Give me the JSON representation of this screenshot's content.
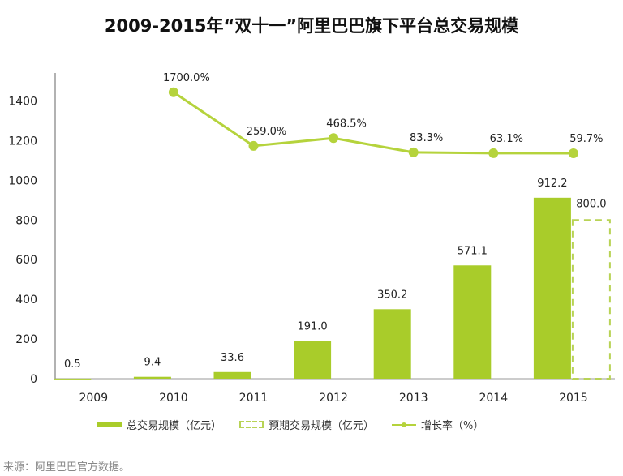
{
  "title": "2009-2015年“双十一”阿里巴巴旗下平台总交易规模",
  "source": "来源：阿里巴巴官方数据。",
  "colors": {
    "bar": "#a9cc2a",
    "forecast": "#b8d355",
    "line": "#b5d33c"
  },
  "chart_data": {
    "type": "bar+line",
    "title": "2009-2015年“双十一”阿里巴巴旗下平台总交易规模",
    "categories": [
      "2009",
      "2010",
      "2011",
      "2012",
      "2013",
      "2014",
      "2015"
    ],
    "ylim": [
      0,
      1500
    ],
    "yticks": [
      0,
      200,
      400,
      600,
      800,
      1000,
      1200,
      1400
    ],
    "y2lim": [
      -6000,
      2000
    ],
    "y2_axis_visible": false,
    "grid": false,
    "legend_position": "bottom",
    "series": [
      {
        "name": "总交易规模（亿元）",
        "type": "bar",
        "values": [
          0.5,
          9.4,
          33.6,
          191.0,
          350.2,
          571.1,
          912.2
        ],
        "labels": [
          "0.5",
          "9.4",
          "33.6",
          "191.0",
          "350.2",
          "571.1",
          "912.2"
        ]
      },
      {
        "name": "预期交易规模（亿元）",
        "type": "bar-dashed",
        "values": [
          null,
          null,
          null,
          null,
          null,
          null,
          800.0
        ],
        "labels": [
          "",
          "",
          "",
          "",
          "",
          "",
          "800.0"
        ]
      },
      {
        "name": "增长率（%）",
        "type": "line",
        "axis": "secondary",
        "values": [
          null,
          1700.0,
          259.0,
          468.5,
          83.3,
          63.1,
          59.7
        ],
        "labels": [
          "",
          "1700.0%",
          "259.0%",
          "468.5%",
          "83.3%",
          "63.1%",
          "59.7%"
        ]
      }
    ]
  }
}
